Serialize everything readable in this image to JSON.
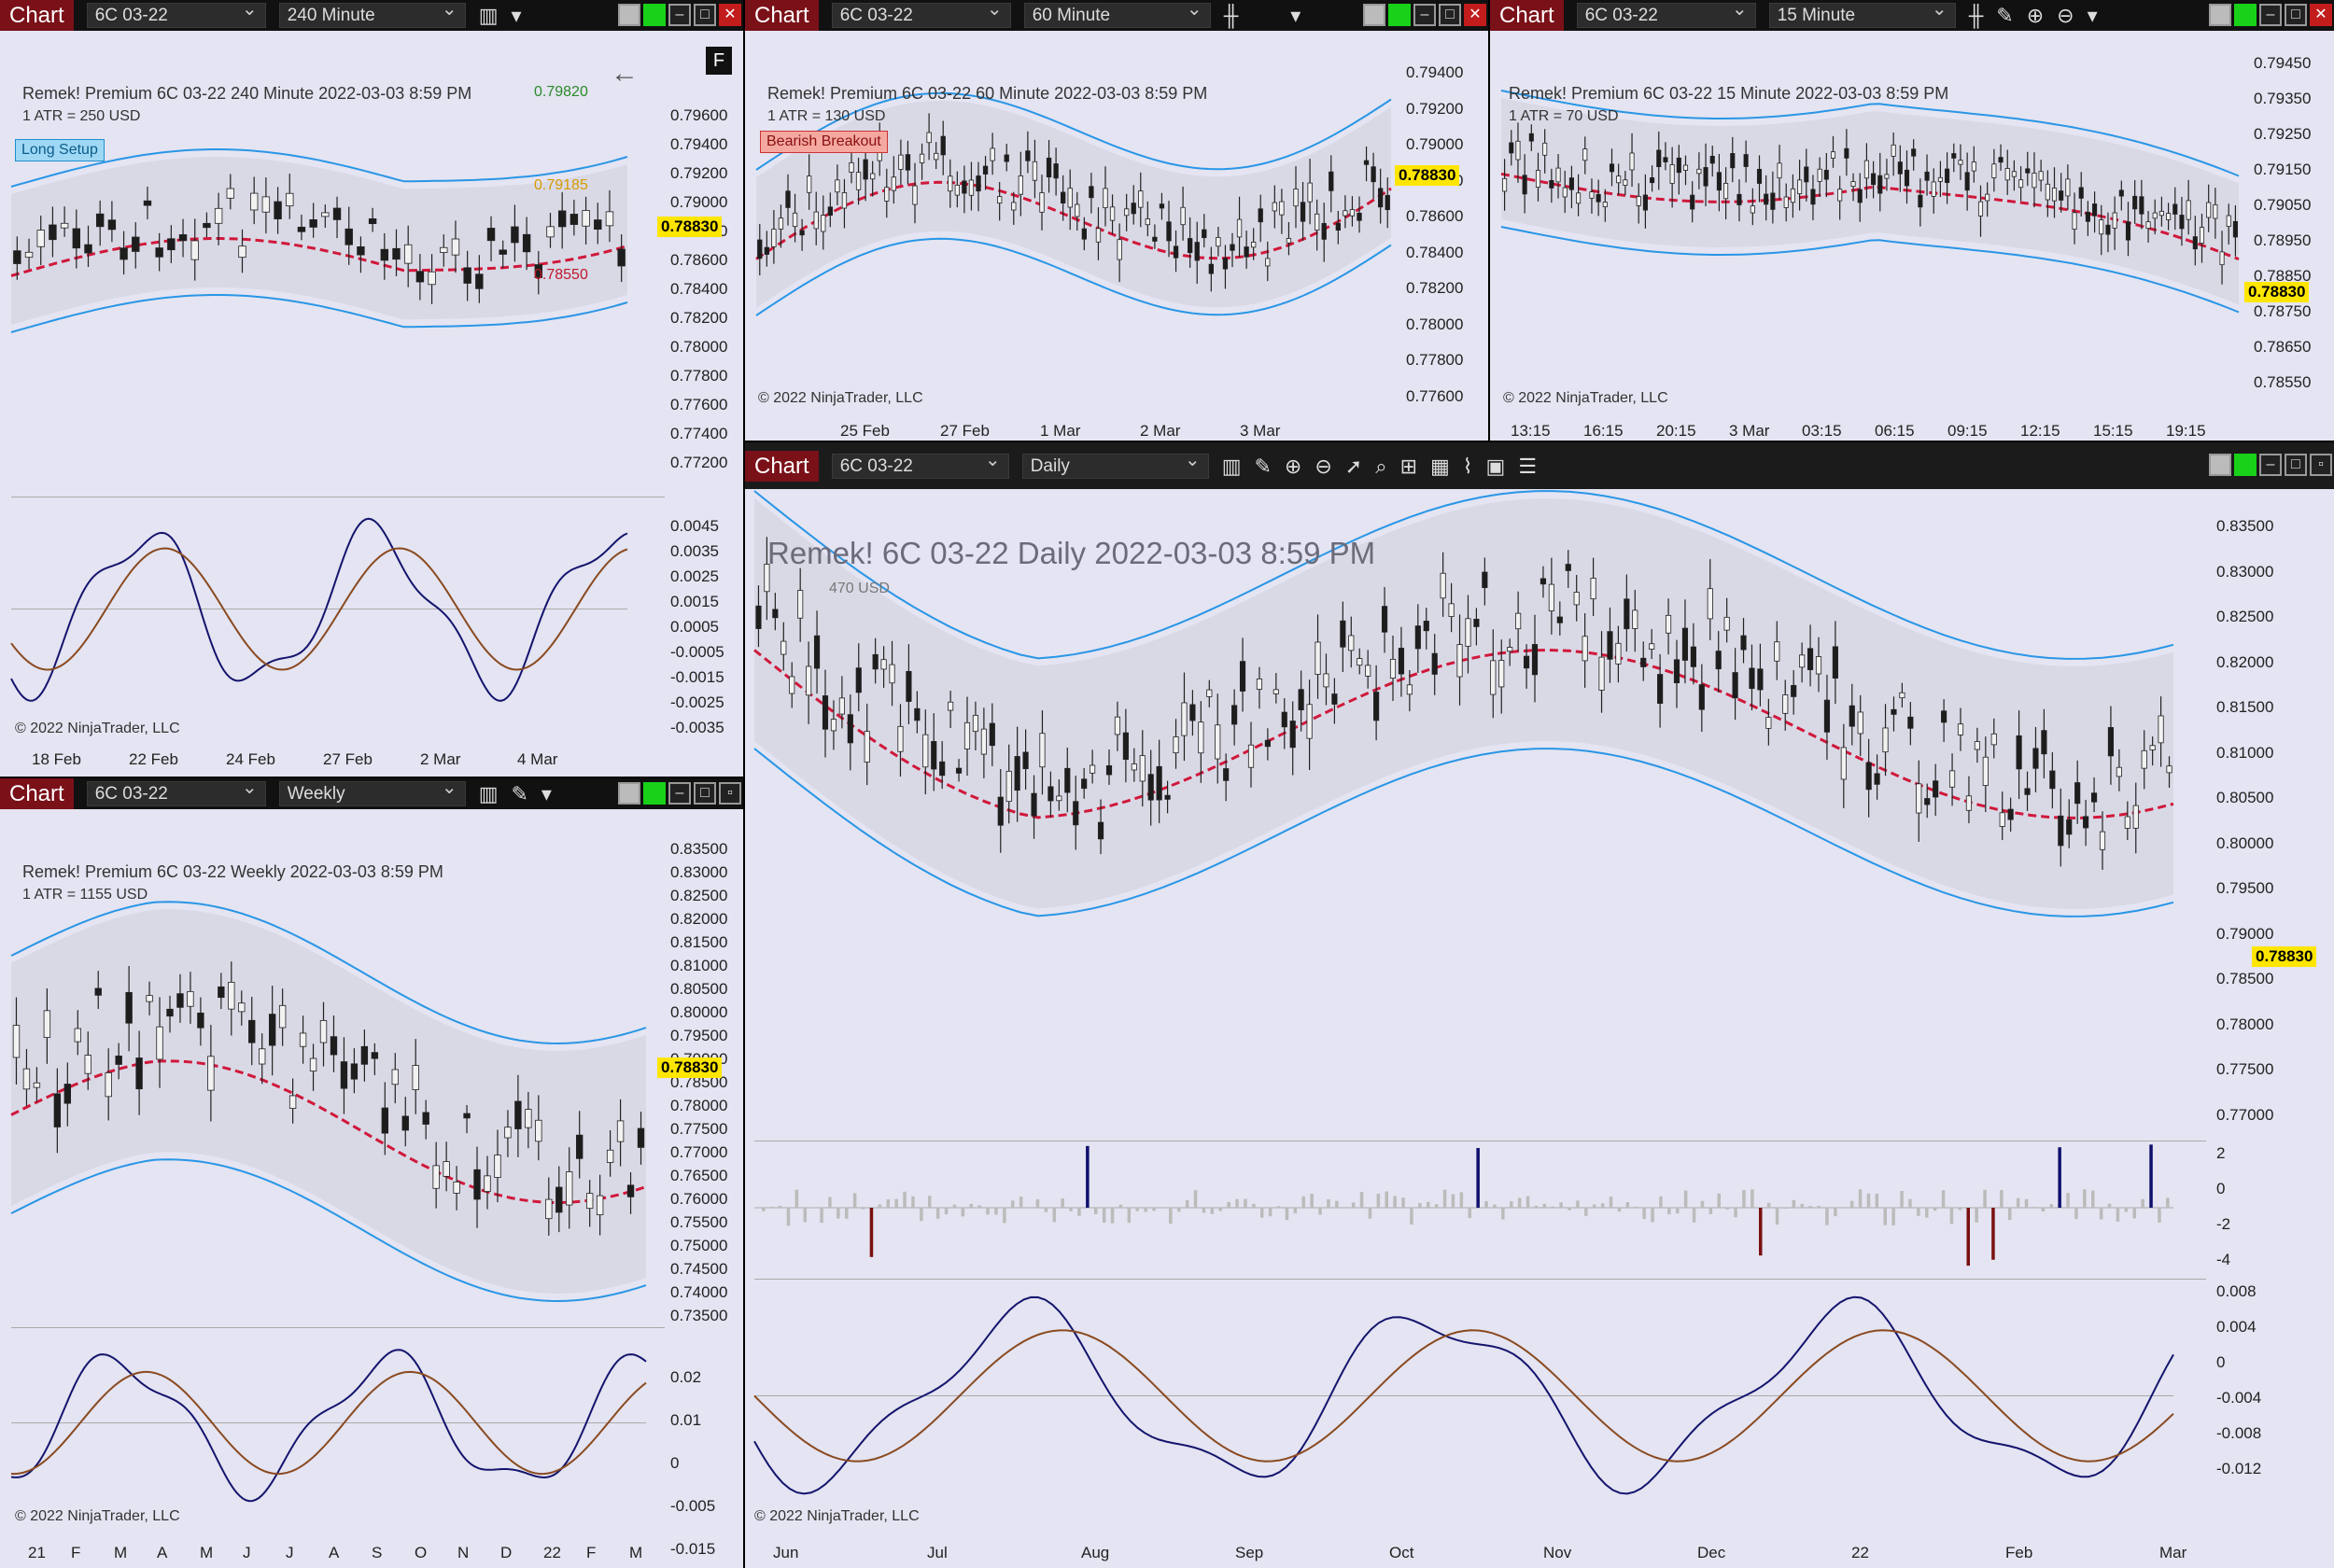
{
  "app": {
    "window_label": "Chart",
    "price": "0.78830",
    "copyright": "© 2022 NinjaTrader, LLC",
    "instrument": "6C 03-22"
  },
  "colors": {
    "titlebar": "#7a1018",
    "bg": "#e4e4f2",
    "band": "#2996e6",
    "up": "#1f4d1f",
    "down": "#7a1010",
    "signal": "#ffe600"
  },
  "win240": {
    "interval": "240 Minute",
    "info": "Remek!  Premium  6C 03-22  240 Minute  2022-03-03 8:59 PM",
    "atr": "1 ATR = 250 USD",
    "setup": "Long Setup",
    "target": "0.79820",
    "entry": "0.79185",
    "stop": "0.78550",
    "badge": "F",
    "yticks": [
      "0.79600",
      "0.79400",
      "0.79200",
      "0.79000",
      "0.78800",
      "0.78600",
      "0.78400",
      "0.78200",
      "0.78000",
      "0.77800",
      "0.77600",
      "0.77400",
      "0.77200"
    ],
    "oticks": [
      "0.0045",
      "0.0035",
      "0.0025",
      "0.0015",
      "0.0005",
      "-0.0005",
      "-0.0015",
      "-0.0025",
      "-0.0035"
    ],
    "xticks": [
      "18 Feb",
      "22 Feb",
      "24 Feb",
      "27 Feb",
      "2 Mar",
      "4 Mar"
    ]
  },
  "win60": {
    "interval": "60 Minute",
    "info": "Remek!  Premium  6C 03-22  60 Minute  2022-03-03 8:59 PM",
    "atr": "1 ATR = 130 USD",
    "setup": "Bearish Breakout",
    "yticks": [
      "0.79400",
      "0.79200",
      "0.79000",
      "0.78800",
      "0.78600",
      "0.78400",
      "0.78200",
      "0.78000",
      "0.77800",
      "0.77600"
    ],
    "xticks": [
      "25 Feb",
      "27 Feb",
      "1 Mar",
      "2 Mar",
      "3 Mar"
    ]
  },
  "win15": {
    "interval": "15 Minute",
    "info": "Remek!  Premium  6C 03-22  15 Minute  2022-03-03 8:59 PM",
    "atr": "1 ATR = 70 USD",
    "yticks": [
      "0.79450",
      "0.79350",
      "0.79250",
      "0.79150",
      "0.79050",
      "0.78950",
      "0.78850",
      "0.78750",
      "0.78650",
      "0.78550"
    ],
    "xticks": [
      "13:15",
      "16:15",
      "20:15",
      "3 Mar",
      "03:15",
      "06:15",
      "09:15",
      "12:15",
      "15:15",
      "19:15"
    ]
  },
  "winW": {
    "interval": "Weekly",
    "info": "Remek!  Premium  6C 03-22  Weekly  2022-03-03 8:59 PM",
    "atr": "1 ATR = 1155 USD",
    "yticks": [
      "0.83500",
      "0.83000",
      "0.82500",
      "0.82000",
      "0.81500",
      "0.81000",
      "0.80500",
      "0.80000",
      "0.79500",
      "0.79000",
      "0.78500",
      "0.78000",
      "0.77500",
      "0.77000",
      "0.76500",
      "0.76000",
      "0.75500",
      "0.75000",
      "0.74500",
      "0.74000",
      "0.73500"
    ],
    "oticks": [
      "0.02",
      "0.01",
      "0",
      "-0.005",
      "-0.015"
    ],
    "xticks": [
      "21",
      "F",
      "M",
      "A",
      "M",
      "J",
      "J",
      "A",
      "S",
      "O",
      "N",
      "D",
      "22",
      "F",
      "M"
    ]
  },
  "winD": {
    "interval": "Daily",
    "info": "Remek!  6C 03-22  Daily  2022-03-03 8:59 PM",
    "atr": "470 USD",
    "yticks": [
      "0.83500",
      "0.83000",
      "0.82500",
      "0.82000",
      "0.81500",
      "0.81000",
      "0.80500",
      "0.80000",
      "0.79500",
      "0.79000",
      "0.78500",
      "0.78000",
      "0.77500",
      "0.77000"
    ],
    "hticks": [
      "2",
      "0",
      "-2",
      "-4"
    ],
    "oticks": [
      "0.008",
      "0.004",
      "0",
      "-0.004",
      "-0.008",
      "-0.012"
    ],
    "xticks": [
      "Jun",
      "Jul",
      "Aug",
      "Sep",
      "Oct",
      "Nov",
      "Dec",
      "22",
      "Feb",
      "Mar"
    ]
  }
}
